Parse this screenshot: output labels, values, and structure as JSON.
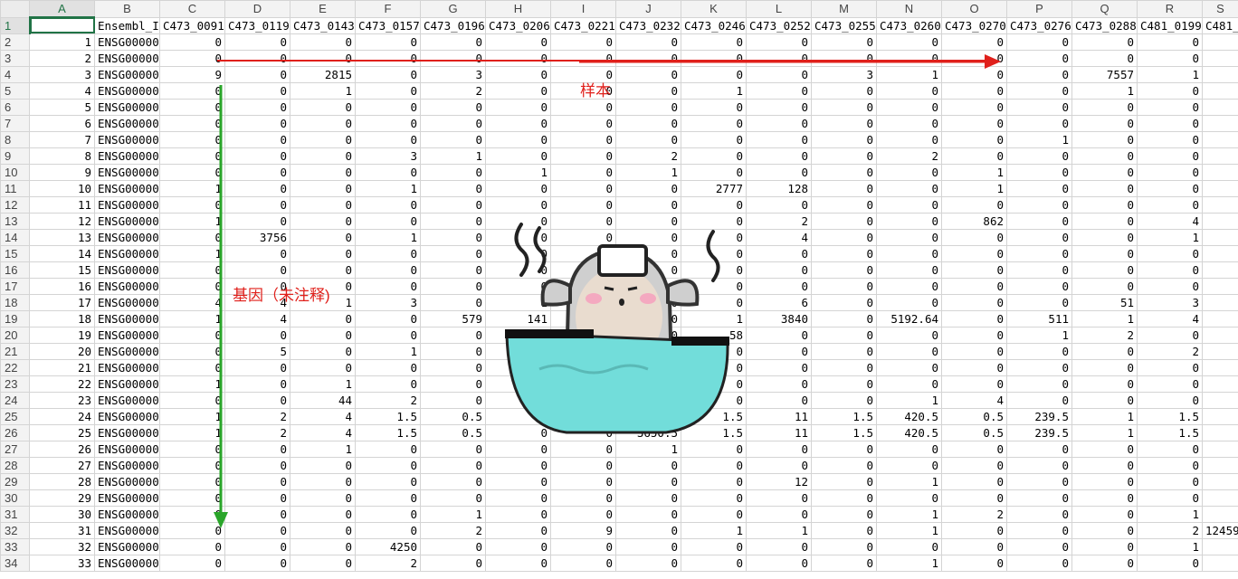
{
  "columns": [
    "A",
    "B",
    "C",
    "D",
    "E",
    "F",
    "G",
    "H",
    "I",
    "J",
    "K",
    "L",
    "M",
    "N",
    "O",
    "P",
    "Q",
    "R",
    "S"
  ],
  "header_row": [
    "",
    "Ensembl_ID",
    "C473_0091",
    "C473_0119",
    "C473_0143",
    "C473_0157",
    "C473_0196",
    "C473_0206",
    "C473_0221",
    "C473_0232",
    "C473_0246",
    "C473_0252",
    "C473_0255",
    "C473_0260",
    "C473_0270",
    "C473_0276",
    "C473_0288",
    "C481_0199",
    "C481_"
  ],
  "rows": [
    [
      "1",
      "ENSG00000",
      "0",
      "0",
      "0",
      "0",
      "0",
      "0",
      "0",
      "0",
      "0",
      "0",
      "0",
      "0",
      "0",
      "0",
      "0",
      "0",
      ""
    ],
    [
      "2",
      "ENSG00000",
      "0",
      "0",
      "0",
      "0",
      "0",
      "0",
      "0",
      "0",
      "0",
      "0",
      "0",
      "0",
      "0",
      "0",
      "0",
      "0",
      ""
    ],
    [
      "3",
      "ENSG00000",
      "9",
      "0",
      "2815",
      "0",
      "3",
      "0",
      "0",
      "0",
      "0",
      "0",
      "3",
      "1",
      "0",
      "0",
      "7557",
      "1",
      ""
    ],
    [
      "4",
      "ENSG00000",
      "0",
      "0",
      "1",
      "0",
      "2",
      "0",
      "0",
      "0",
      "1",
      "0",
      "0",
      "0",
      "0",
      "0",
      "1",
      "0",
      ""
    ],
    [
      "5",
      "ENSG00000",
      "0",
      "0",
      "0",
      "0",
      "0",
      "0",
      "0",
      "0",
      "0",
      "0",
      "0",
      "0",
      "0",
      "0",
      "0",
      "0",
      ""
    ],
    [
      "6",
      "ENSG00000",
      "0",
      "0",
      "0",
      "0",
      "0",
      "0",
      "0",
      "0",
      "0",
      "0",
      "0",
      "0",
      "0",
      "0",
      "0",
      "0",
      ""
    ],
    [
      "7",
      "ENSG00000",
      "0",
      "0",
      "0",
      "0",
      "0",
      "0",
      "0",
      "0",
      "0",
      "0",
      "0",
      "0",
      "0",
      "1",
      "0",
      "0",
      ""
    ],
    [
      "8",
      "ENSG00000",
      "0",
      "0",
      "0",
      "3",
      "1",
      "0",
      "0",
      "2",
      "0",
      "0",
      "0",
      "2",
      "0",
      "0",
      "0",
      "0",
      ""
    ],
    [
      "9",
      "ENSG00000",
      "0",
      "0",
      "0",
      "0",
      "0",
      "1",
      "0",
      "1",
      "0",
      "0",
      "0",
      "0",
      "1",
      "0",
      "0",
      "0",
      ""
    ],
    [
      "10",
      "ENSG00000",
      "1",
      "0",
      "0",
      "1",
      "0",
      "0",
      "0",
      "0",
      "2777",
      "128",
      "0",
      "0",
      "1",
      "0",
      "0",
      "0",
      ""
    ],
    [
      "11",
      "ENSG00000",
      "0",
      "0",
      "0",
      "0",
      "0",
      "0",
      "0",
      "0",
      "0",
      "0",
      "0",
      "0",
      "0",
      "0",
      "0",
      "0",
      ""
    ],
    [
      "12",
      "ENSG00000",
      "1",
      "0",
      "0",
      "0",
      "0",
      "0",
      "0",
      "0",
      "0",
      "2",
      "0",
      "0",
      "862",
      "0",
      "0",
      "4",
      ""
    ],
    [
      "13",
      "ENSG00000",
      "0",
      "3756",
      "0",
      "1",
      "0",
      "0",
      "0",
      "0",
      "0",
      "4",
      "0",
      "0",
      "0",
      "0",
      "0",
      "1",
      ""
    ],
    [
      "14",
      "ENSG00000",
      "1",
      "0",
      "0",
      "0",
      "0",
      "0",
      "0",
      "0",
      "0",
      "0",
      "0",
      "0",
      "0",
      "0",
      "0",
      "0",
      ""
    ],
    [
      "15",
      "ENSG00000",
      "0",
      "0",
      "0",
      "0",
      "0",
      "0",
      "0",
      "0",
      "0",
      "0",
      "0",
      "0",
      "0",
      "0",
      "0",
      "0",
      ""
    ],
    [
      "16",
      "ENSG00000",
      "0",
      "0",
      "0",
      "0",
      "0",
      "0",
      "0",
      "0",
      "0",
      "0",
      "0",
      "0",
      "0",
      "0",
      "0",
      "0",
      ""
    ],
    [
      "17",
      "ENSG00000",
      "4",
      "4",
      "1",
      "3",
      "0",
      "1",
      "0",
      "0",
      "0",
      "6",
      "0",
      "0",
      "0",
      "0",
      "51",
      "3",
      ""
    ],
    [
      "18",
      "ENSG00000",
      "1",
      "4",
      "0",
      "0",
      "579",
      "141",
      "0",
      "0",
      "1",
      "3840",
      "0",
      "5192.64",
      "0",
      "511",
      "1",
      "4",
      ""
    ],
    [
      "19",
      "ENSG00000",
      "0",
      "0",
      "0",
      "0",
      "0",
      "0",
      "0",
      "0",
      "58",
      "0",
      "0",
      "0",
      "0",
      "1",
      "2",
      "0",
      ""
    ],
    [
      "20",
      "ENSG00000",
      "0",
      "5",
      "0",
      "1",
      "0",
      "0",
      "0",
      "0",
      "0",
      "0",
      "0",
      "0",
      "0",
      "0",
      "0",
      "2",
      ""
    ],
    [
      "21",
      "ENSG00000",
      "0",
      "0",
      "0",
      "0",
      "0",
      "0",
      "0",
      "0",
      "0",
      "0",
      "0",
      "0",
      "0",
      "0",
      "0",
      "0",
      ""
    ],
    [
      "22",
      "ENSG00000",
      "1",
      "0",
      "1",
      "0",
      "0",
      "0",
      "0",
      "0",
      "0",
      "0",
      "0",
      "0",
      "0",
      "0",
      "0",
      "0",
      ""
    ],
    [
      "23",
      "ENSG00000",
      "0",
      "0",
      "44",
      "2",
      "0",
      "0",
      "0",
      "0",
      "0",
      "0",
      "0",
      "1",
      "4",
      "0",
      "0",
      "0",
      ""
    ],
    [
      "24",
      "ENSG00000",
      "1",
      "2",
      "4",
      "1.5",
      "0.5",
      "0",
      "0",
      "0",
      "1.5",
      "11",
      "1.5",
      "420.5",
      "0.5",
      "239.5",
      "1",
      "1.5",
      ""
    ],
    [
      "25",
      "ENSG00000",
      "1",
      "2",
      "4",
      "1.5",
      "0.5",
      "0",
      "0",
      "3650.5",
      "1.5",
      "11",
      "1.5",
      "420.5",
      "0.5",
      "239.5",
      "1",
      "1.5",
      ""
    ],
    [
      "26",
      "ENSG00000",
      "0",
      "0",
      "1",
      "0",
      "0",
      "0",
      "0",
      "1",
      "0",
      "0",
      "0",
      "0",
      "0",
      "0",
      "0",
      "0",
      ""
    ],
    [
      "27",
      "ENSG00000",
      "0",
      "0",
      "0",
      "0",
      "0",
      "0",
      "0",
      "0",
      "0",
      "0",
      "0",
      "0",
      "0",
      "0",
      "0",
      "0",
      ""
    ],
    [
      "28",
      "ENSG00000",
      "0",
      "0",
      "0",
      "0",
      "0",
      "0",
      "0",
      "0",
      "0",
      "12",
      "0",
      "1",
      "0",
      "0",
      "0",
      "0",
      ""
    ],
    [
      "29",
      "ENSG00000",
      "0",
      "0",
      "0",
      "0",
      "0",
      "0",
      "0",
      "0",
      "0",
      "0",
      "0",
      "0",
      "0",
      "0",
      "0",
      "0",
      ""
    ],
    [
      "30",
      "ENSG00000",
      "0",
      "0",
      "0",
      "0",
      "1",
      "0",
      "0",
      "0",
      "0",
      "0",
      "0",
      "1",
      "2",
      "0",
      "0",
      "1",
      ""
    ],
    [
      "31",
      "ENSG00000",
      "0",
      "0",
      "0",
      "0",
      "2",
      "0",
      "9",
      "0",
      "1",
      "1",
      "0",
      "1",
      "0",
      "0",
      "0",
      "2",
      "12459"
    ],
    [
      "32",
      "ENSG00000",
      "0",
      "0",
      "0",
      "4250",
      "0",
      "0",
      "0",
      "0",
      "0",
      "0",
      "0",
      "0",
      "0",
      "0",
      "0",
      "1",
      ""
    ],
    [
      "33",
      "ENSG00000",
      "0",
      "0",
      "0",
      "2",
      "0",
      "0",
      "0",
      "0",
      "0",
      "0",
      "0",
      "1",
      "0",
      "0",
      "0",
      "0",
      ""
    ]
  ],
  "annotations": {
    "samples_label": "样本",
    "genes_label": "基因（未注释)",
    "arrow_red": "#e0201b",
    "arrow_green": "#2aa52a"
  },
  "colors": {
    "header_bg": "#f3f3f3",
    "grid_line": "#d4d4d4",
    "select_green": "#217346"
  }
}
